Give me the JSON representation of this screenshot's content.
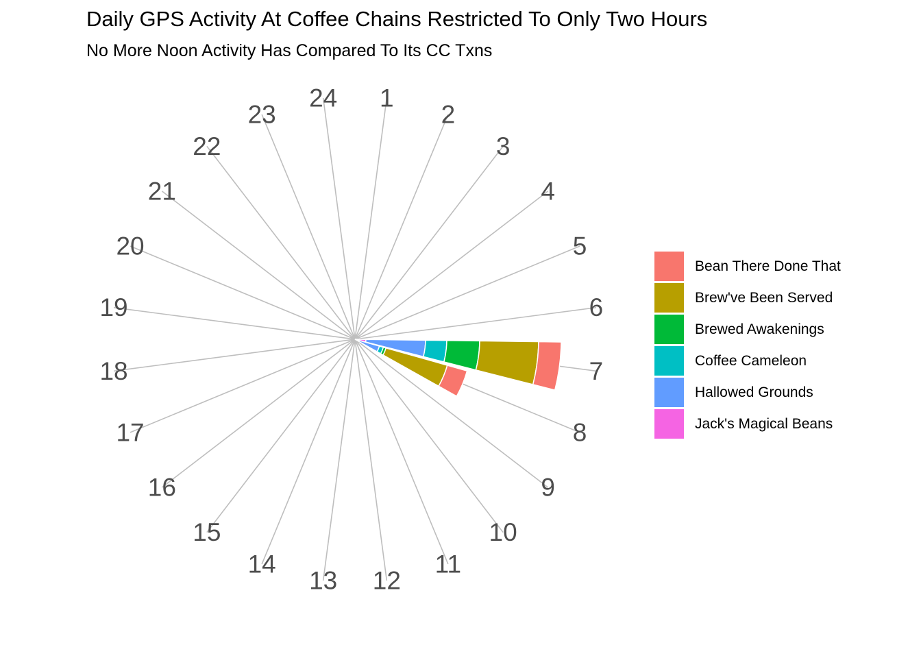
{
  "chart_data": {
    "type": "bar",
    "subtype": "polar-stacked-bar",
    "title": "Daily GPS Activity At Coffee Chains Restricted To Only Two Hours",
    "subtitle": "No More Noon Activity Has Compared To Its CC Txns",
    "categories": [
      "1",
      "2",
      "3",
      "4",
      "5",
      "6",
      "7",
      "8",
      "9",
      "10",
      "11",
      "12",
      "13",
      "14",
      "15",
      "16",
      "17",
      "18",
      "19",
      "20",
      "21",
      "22",
      "23",
      "24"
    ],
    "series": [
      {
        "name": "Bean There Done That",
        "color": "#F8766D",
        "values": [
          0,
          0,
          0,
          0,
          0,
          0,
          33,
          30,
          0,
          0,
          0,
          0,
          0,
          0,
          0,
          0,
          0,
          0,
          0,
          0,
          0,
          0,
          0,
          0
        ]
      },
      {
        "name": "Brew've Been Served",
        "color": "#B79F00",
        "values": [
          0,
          0,
          0,
          0,
          0,
          0,
          86,
          93,
          0,
          0,
          0,
          0,
          0,
          0,
          0,
          0,
          0,
          0,
          0,
          0,
          0,
          0,
          0,
          0
        ]
      },
      {
        "name": "Brewed Awakenings",
        "color": "#00BA38",
        "values": [
          0,
          0,
          0,
          0,
          0,
          0,
          48,
          4,
          0,
          0,
          0,
          0,
          0,
          0,
          0,
          0,
          0,
          0,
          0,
          0,
          0,
          0,
          0,
          0
        ]
      },
      {
        "name": "Coffee Cameleon",
        "color": "#00BFC4",
        "values": [
          0,
          0,
          0,
          0,
          0,
          0,
          31,
          6,
          0,
          0,
          0,
          0,
          0,
          0,
          0,
          0,
          0,
          0,
          0,
          0,
          0,
          0,
          0,
          0
        ]
      },
      {
        "name": "Hallowed Grounds",
        "color": "#619CFF",
        "values": [
          0,
          0,
          0,
          0,
          0,
          0,
          87,
          35,
          0,
          0,
          0,
          0,
          0,
          0,
          0,
          0,
          0,
          0,
          0,
          0,
          0,
          0,
          0,
          0
        ]
      },
      {
        "name": "Jack's Magical Beans",
        "color": "#F564E3",
        "values": [
          0,
          0,
          0,
          0,
          0,
          0,
          16,
          2,
          0,
          0,
          0,
          0,
          0,
          0,
          0,
          0,
          0,
          0,
          0,
          0,
          0,
          0,
          0,
          0
        ]
      }
    ],
    "ylim": [
      0,
      400
    ],
    "grid": true,
    "legend_position": "right",
    "gridline_color": "#bebebe"
  }
}
